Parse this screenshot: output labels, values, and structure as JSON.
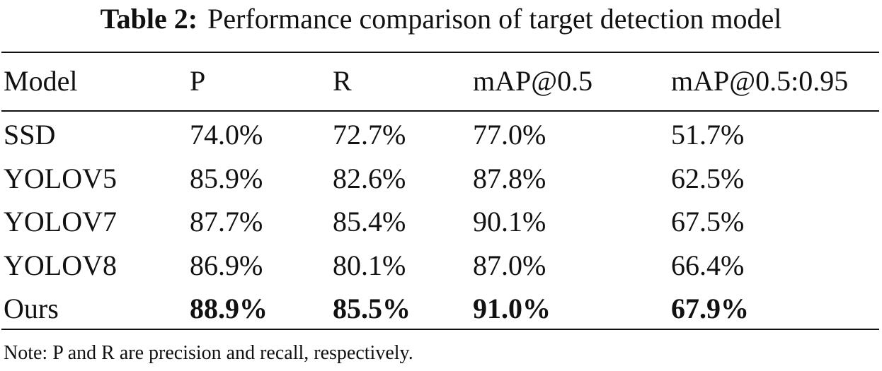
{
  "caption": {
    "label": "Table 2:",
    "text": "Performance comparison of target detection model"
  },
  "table": {
    "headers": [
      "Model",
      "P",
      "R",
      "mAP@0.5",
      "mAP@0.5:0.95"
    ],
    "rows": [
      {
        "model": "SSD",
        "p": "74.0%",
        "r": "72.7%",
        "map50": "77.0%",
        "map5095": "51.7%",
        "bold": false
      },
      {
        "model": "YOLOV5",
        "p": "85.9%",
        "r": "82.6%",
        "map50": "87.8%",
        "map5095": "62.5%",
        "bold": false
      },
      {
        "model": "YOLOV7",
        "p": "87.7%",
        "r": "85.4%",
        "map50": "90.1%",
        "map5095": "67.5%",
        "bold": false
      },
      {
        "model": "YOLOV8",
        "p": "86.9%",
        "r": "80.1%",
        "map50": "87.0%",
        "map5095": "66.4%",
        "bold": false
      },
      {
        "model": "Ours",
        "p": "88.9%",
        "r": "85.5%",
        "map50": "91.0%",
        "map5095": "67.9%",
        "bold": true
      }
    ]
  },
  "note": "Note: P and R are precision and recall, respectively."
}
